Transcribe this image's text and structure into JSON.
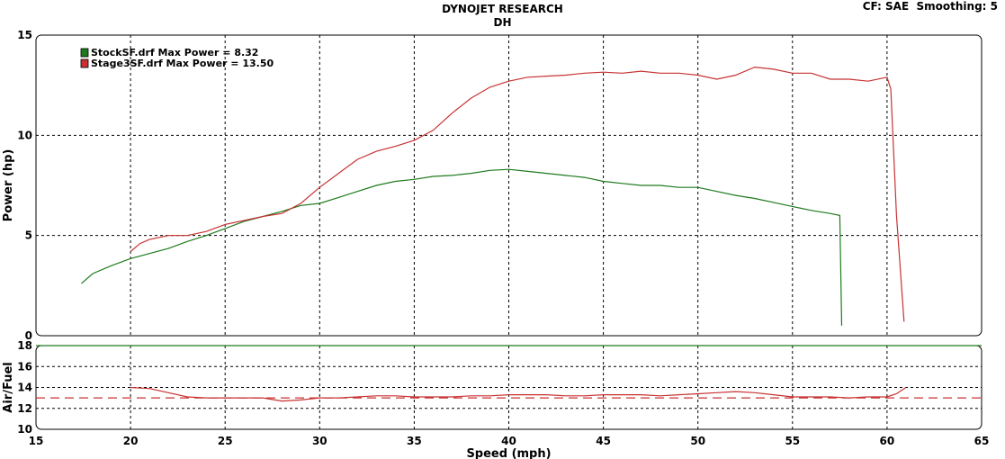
{
  "header": {
    "title": "DYNOJET RESEARCH",
    "subtitle": "DH",
    "settings": "CF: SAE  Smoothing: 5"
  },
  "chart_data": [
    {
      "type": "line",
      "ylabel": "Power (hp)",
      "xlim": [
        15,
        65
      ],
      "ylim": [
        0,
        15
      ],
      "yticks": [
        0,
        5,
        10,
        15
      ],
      "grid": true,
      "legend": "top-left",
      "series": [
        {
          "name": "StockSF.drf Max Power = 8.32",
          "color": "#1e7a1e",
          "x": [
            17.4,
            18,
            19,
            20,
            21,
            22,
            23,
            24,
            25,
            26,
            27,
            28,
            29,
            30,
            31,
            32,
            33,
            34,
            35,
            36,
            37,
            38,
            39,
            40,
            41,
            42,
            43,
            44,
            45,
            46,
            47,
            48,
            49,
            50,
            51,
            52,
            53,
            54,
            55,
            56,
            57,
            57.5,
            57.6
          ],
          "y": [
            2.6,
            3.1,
            3.5,
            3.85,
            4.1,
            4.35,
            4.7,
            5.0,
            5.35,
            5.7,
            5.95,
            6.2,
            6.5,
            6.6,
            6.9,
            7.2,
            7.5,
            7.7,
            7.8,
            7.95,
            8.0,
            8.1,
            8.25,
            8.3,
            8.2,
            8.1,
            8.0,
            7.9,
            7.7,
            7.6,
            7.5,
            7.5,
            7.4,
            7.4,
            7.2,
            7.0,
            6.85,
            6.65,
            6.45,
            6.25,
            6.1,
            6.0,
            0.5
          ]
        },
        {
          "name": "Stage3SF.drf Max Power = 13.50",
          "color": "#c83232",
          "x": [
            20,
            20.5,
            21,
            22,
            23,
            24,
            25,
            26,
            27,
            28,
            29,
            30,
            31,
            32,
            33,
            34,
            35,
            36,
            37,
            38,
            39,
            40,
            41,
            42,
            43,
            44,
            45,
            46,
            47,
            48,
            49,
            50,
            51,
            52,
            53,
            54,
            55,
            56,
            57,
            58,
            59,
            60,
            60.2,
            60.5,
            60.9
          ],
          "y": [
            4.2,
            4.6,
            4.8,
            5.0,
            5.0,
            5.2,
            5.55,
            5.75,
            5.95,
            6.1,
            6.6,
            7.4,
            8.1,
            8.8,
            9.2,
            9.45,
            9.75,
            10.25,
            11.1,
            11.85,
            12.4,
            12.7,
            12.9,
            12.95,
            13.0,
            13.1,
            13.15,
            13.1,
            13.2,
            13.1,
            13.1,
            13.0,
            12.8,
            13.0,
            13.4,
            13.3,
            13.1,
            13.1,
            12.8,
            12.8,
            12.7,
            12.9,
            12.3,
            6.0,
            0.7
          ]
        }
      ]
    },
    {
      "type": "line",
      "ylabel": "Air/Fuel",
      "xlabel": "Speed (mph)",
      "xlim": [
        15,
        65
      ],
      "ylim": [
        10,
        18
      ],
      "yticks": [
        10,
        12,
        14,
        16,
        18
      ],
      "xticks": [
        15,
        20,
        25,
        30,
        35,
        40,
        45,
        50,
        55,
        60,
        65
      ],
      "grid": true,
      "reference_line": {
        "y": 13.0,
        "color": "#c83232",
        "style": "dashed"
      },
      "series": [
        {
          "color": "#1e7a1e",
          "x": [
            15,
            65
          ],
          "y": [
            18.0,
            18.0
          ]
        },
        {
          "color": "#c83232",
          "x": [
            20,
            21,
            22,
            23,
            24,
            25,
            26,
            27,
            28,
            29,
            30,
            31,
            32,
            33,
            34,
            35,
            36,
            37,
            38,
            39,
            40,
            41,
            42,
            43,
            44,
            45,
            46,
            47,
            48,
            49,
            50,
            51,
            52,
            53,
            54,
            55,
            56,
            57,
            58,
            59,
            60,
            60.5,
            61
          ],
          "y": [
            14.0,
            13.9,
            13.5,
            13.1,
            13.0,
            13.0,
            13.0,
            13.0,
            12.7,
            12.8,
            13.0,
            13.0,
            13.1,
            13.2,
            13.2,
            13.1,
            13.1,
            13.1,
            13.2,
            13.2,
            13.3,
            13.3,
            13.3,
            13.2,
            13.2,
            13.3,
            13.3,
            13.3,
            13.2,
            13.3,
            13.4,
            13.5,
            13.6,
            13.5,
            13.3,
            13.1,
            13.1,
            13.1,
            13.0,
            13.1,
            13.1,
            13.4,
            14.0
          ]
        }
      ]
    }
  ]
}
